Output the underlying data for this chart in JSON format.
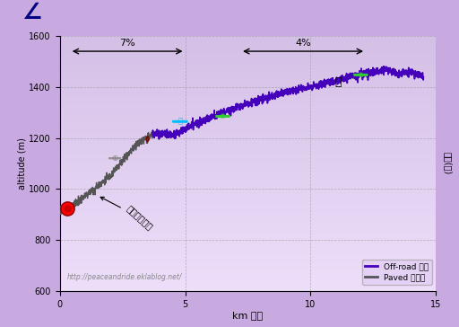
{
  "xlim": [
    0,
    15
  ],
  "ylim": [
    600,
    1600
  ],
  "xlabel": "km 公里",
  "ylabel_right": "海拘(米)",
  "ylabel_left": "altitude (m)",
  "bg_color_top": "#c0a0dc",
  "bg_color_bottom": "#e8d8f4",
  "grid_color": "#aaaaaa",
  "yticks": [
    600,
    800,
    1000,
    1200,
    1400,
    1600
  ],
  "xticks": [
    0,
    5,
    10,
    15
  ],
  "offroad_color": "#4400bb",
  "paved_color": "#555555",
  "website": "http://peaceandride.eklablog.net/",
  "annotation_text": "羅山林道南線",
  "slope1_label": "7%",
  "slope2_label": "4%",
  "slope1_x_start": 0.4,
  "slope1_x_end": 5.0,
  "slope2_x_start": 7.2,
  "slope2_x_end": 12.2,
  "slope_y": 1540,
  "legend_offroad": "Off-road 越野",
  "legend_paved": "Paved 硬面路"
}
